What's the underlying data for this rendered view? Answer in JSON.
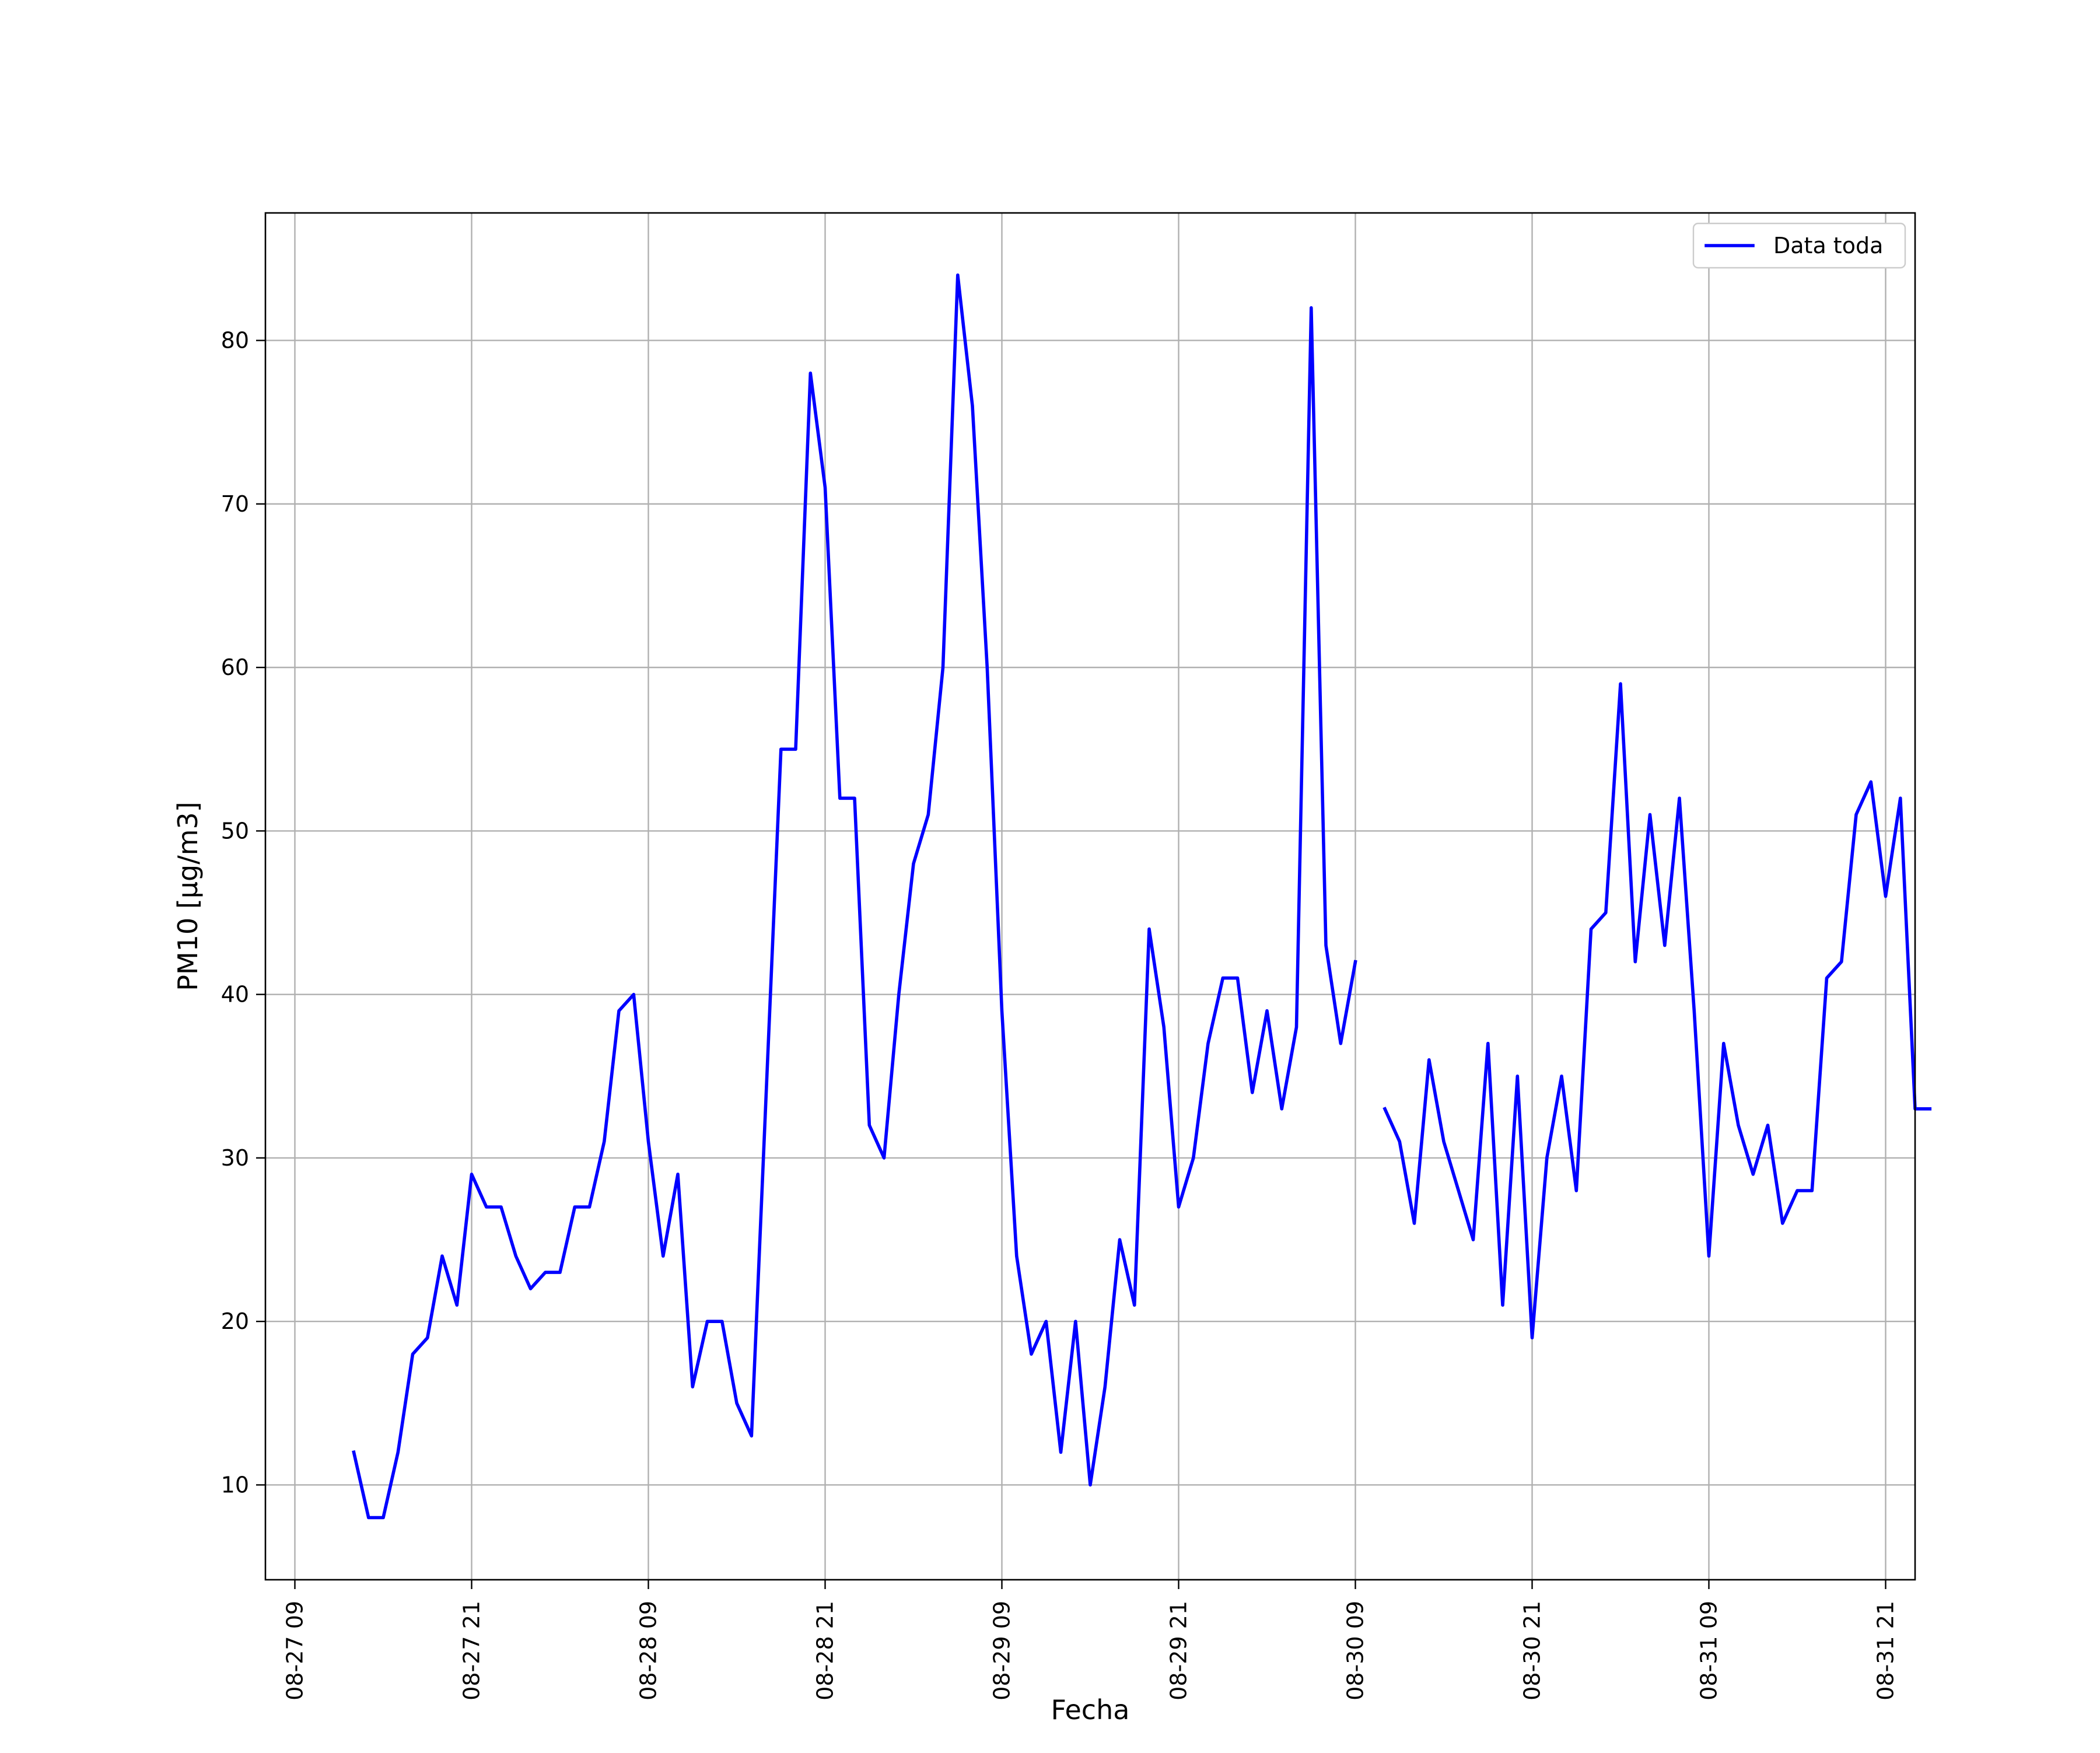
{
  "chart_data": {
    "type": "line",
    "title": "",
    "xlabel": "Fecha",
    "ylabel": "PM10 [μg/m3]",
    "x_unit": "hours",
    "x_start": "08-27 09",
    "xlim": [
      "08-27 07",
      "08-31 23"
    ],
    "ylim": [
      4.2,
      87.8
    ],
    "grid": true,
    "legend_position": "top-right",
    "x_ticks": [
      {
        "value": "08-27 09",
        "label": "08-27 09"
      },
      {
        "value": "08-27 21",
        "label": "08-27 21"
      },
      {
        "value": "08-28 09",
        "label": "08-28 09"
      },
      {
        "value": "08-28 21",
        "label": "08-28 21"
      },
      {
        "value": "08-29 09",
        "label": "08-29 09"
      },
      {
        "value": "08-29 21",
        "label": "08-29 21"
      },
      {
        "value": "08-30 09",
        "label": "08-30 09"
      },
      {
        "value": "08-30 21",
        "label": "08-30 21"
      },
      {
        "value": "08-31 09",
        "label": "08-31 09"
      },
      {
        "value": "08-31 21",
        "label": "08-31 21"
      }
    ],
    "y_ticks": [
      {
        "value": 10,
        "label": "10"
      },
      {
        "value": 20,
        "label": "20"
      },
      {
        "value": 30,
        "label": "30"
      },
      {
        "value": 40,
        "label": "40"
      },
      {
        "value": 50,
        "label": "50"
      },
      {
        "value": 60,
        "label": "60"
      },
      {
        "value": 70,
        "label": "70"
      },
      {
        "value": 80,
        "label": "80"
      }
    ],
    "series": [
      {
        "name": "Data toda",
        "color": "#0000ff",
        "x_start": "08-27 13",
        "x_step_hours": 1,
        "values": [
          12,
          8,
          8,
          12,
          18,
          19,
          24,
          21,
          29,
          27,
          27,
          24,
          22,
          23,
          23,
          27,
          27,
          31,
          39,
          40,
          31,
          24,
          29,
          16,
          20,
          20,
          15,
          13,
          34,
          55,
          55,
          78,
          71,
          52,
          52,
          32,
          30,
          40,
          48,
          51,
          60,
          84,
          76,
          60,
          39,
          24,
          18,
          20,
          12,
          20,
          10,
          16,
          25,
          21,
          44,
          38,
          27,
          30,
          37,
          41,
          41,
          34,
          39,
          33,
          38,
          82,
          43,
          37,
          42,
          null,
          33,
          31,
          26,
          36,
          31,
          28,
          25,
          37,
          21,
          35,
          19,
          30,
          35,
          28,
          44,
          45,
          59,
          42,
          51,
          43,
          52,
          39,
          24,
          37,
          32,
          29,
          32,
          26,
          28,
          28,
          41,
          42,
          51,
          53,
          46,
          52,
          33,
          33
        ]
      }
    ]
  }
}
